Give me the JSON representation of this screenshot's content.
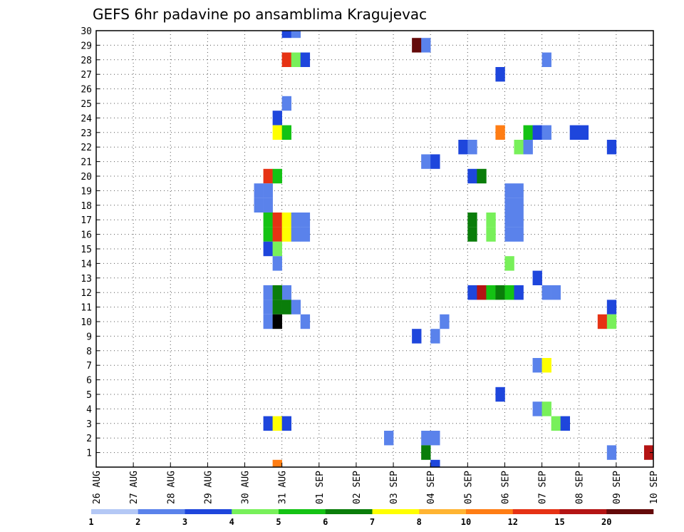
{
  "chart_data": {
    "type": "heatmap",
    "title": "GEFS 6hr padavine po ansamblima Kragujevac",
    "x_start": "2020-08-26T00:00",
    "x_end": "2020-09-10T00:00",
    "x_tick_labels": [
      "26 AUG",
      "27 AUG",
      "28 AUG",
      "29 AUG",
      "30 AUG",
      "31 AUG",
      "01 SEP",
      "02 SEP",
      "03 SEP",
      "04 SEP",
      "05 SEP",
      "06 SEP",
      "07 SEP",
      "08 SEP",
      "09 SEP",
      "10 SEP"
    ],
    "y_ticks": [
      1,
      2,
      3,
      4,
      5,
      6,
      7,
      8,
      9,
      10,
      11,
      12,
      13,
      14,
      15,
      16,
      17,
      18,
      19,
      20,
      21,
      22,
      23,
      24,
      25,
      26,
      27,
      28,
      29,
      30
    ],
    "ylim": [
      0,
      30
    ],
    "grid": true,
    "colorbar": {
      "levels": [
        1,
        2,
        3,
        4,
        5,
        6,
        7,
        8,
        10,
        12,
        15,
        20
      ],
      "labels": [
        "1",
        "2",
        "3",
        "4",
        "5",
        "6",
        "7",
        "8",
        "10",
        "12",
        "15",
        "20"
      ],
      "colors": [
        "#b4c8f5",
        "#5a82eb",
        "#1e46dc",
        "#78f05a",
        "#14c314",
        "#0a7d0a",
        "#ffff00",
        "#ffb432",
        "#ff7d14",
        "#e63214",
        "#b41414",
        "#640a0a"
      ]
    },
    "cells": [
      [
        "2020-08-31T00:00",
        30,
        2
      ],
      [
        "2020-08-31T06:00",
        30,
        1
      ],
      [
        "2020-09-03T12:00",
        29,
        11
      ],
      [
        "2020-09-03T18:00",
        29,
        1
      ],
      [
        "2020-08-31T00:00",
        28,
        9
      ],
      [
        "2020-08-31T06:00",
        28,
        3
      ],
      [
        "2020-08-31T12:00",
        28,
        2
      ],
      [
        "2020-09-07T00:00",
        28,
        1
      ],
      [
        "2020-09-05T18:00",
        27,
        2
      ],
      [
        "2020-08-31T00:00",
        25,
        1
      ],
      [
        "2020-08-30T18:00",
        24,
        2
      ],
      [
        "2020-08-30T18:00",
        23,
        6
      ],
      [
        "2020-08-31T00:00",
        23,
        4
      ],
      [
        "2020-09-05T18:00",
        23,
        8
      ],
      [
        "2020-09-06T12:00",
        23,
        4
      ],
      [
        "2020-09-06T18:00",
        23,
        2
      ],
      [
        "2020-09-07T00:00",
        23,
        1
      ],
      [
        "2020-09-07T18:00",
        23,
        2
      ],
      [
        "2020-09-08T00:00",
        23,
        2
      ],
      [
        "2020-09-04T18:00",
        22,
        2
      ],
      [
        "2020-09-05T00:00",
        22,
        1
      ],
      [
        "2020-09-06T06:00",
        22,
        3
      ],
      [
        "2020-09-06T12:00",
        22,
        1
      ],
      [
        "2020-09-08T18:00",
        22,
        2
      ],
      [
        "2020-09-03T18:00",
        21,
        1
      ],
      [
        "2020-09-04T00:00",
        21,
        2
      ],
      [
        "2020-08-30T12:00",
        20,
        9
      ],
      [
        "2020-08-30T18:00",
        20,
        4
      ],
      [
        "2020-09-05T00:00",
        20,
        2
      ],
      [
        "2020-09-05T06:00",
        20,
        5
      ],
      [
        "2020-08-30T06:00",
        19,
        1
      ],
      [
        "2020-08-30T12:00",
        19,
        1
      ],
      [
        "2020-09-06T00:00",
        19,
        1
      ],
      [
        "2020-09-06T06:00",
        19,
        1
      ],
      [
        "2020-08-30T06:00",
        18,
        1
      ],
      [
        "2020-08-30T12:00",
        18,
        1
      ],
      [
        "2020-09-06T00:00",
        18,
        1
      ],
      [
        "2020-09-06T06:00",
        18,
        1
      ],
      [
        "2020-08-30T12:00",
        17,
        4
      ],
      [
        "2020-08-30T18:00",
        17,
        9
      ],
      [
        "2020-08-31T00:00",
        17,
        6
      ],
      [
        "2020-08-31T06:00",
        17,
        1
      ],
      [
        "2020-08-31T12:00",
        17,
        1
      ],
      [
        "2020-09-05T00:00",
        17,
        5
      ],
      [
        "2020-09-05T12:00",
        17,
        3
      ],
      [
        "2020-09-06T00:00",
        17,
        1
      ],
      [
        "2020-09-06T06:00",
        17,
        1
      ],
      [
        "2020-08-30T12:00",
        16,
        4
      ],
      [
        "2020-08-30T18:00",
        16,
        9
      ],
      [
        "2020-08-31T00:00",
        16,
        6
      ],
      [
        "2020-08-31T06:00",
        16,
        1
      ],
      [
        "2020-08-31T12:00",
        16,
        1
      ],
      [
        "2020-09-05T00:00",
        16,
        5
      ],
      [
        "2020-09-05T12:00",
        16,
        3
      ],
      [
        "2020-09-06T00:00",
        16,
        1
      ],
      [
        "2020-09-06T06:00",
        16,
        1
      ],
      [
        "2020-08-30T12:00",
        15,
        2
      ],
      [
        "2020-08-30T18:00",
        15,
        3
      ],
      [
        "2020-08-30T18:00",
        14,
        1
      ],
      [
        "2020-09-06T00:00",
        14,
        3
      ],
      [
        "2020-09-06T18:00",
        13,
        2
      ],
      [
        "2020-08-31T00:00",
        12,
        1
      ],
      [
        "2020-08-30T12:00",
        12,
        1
      ],
      [
        "2020-08-30T18:00",
        12,
        5
      ],
      [
        "2020-09-05T00:00",
        12,
        2
      ],
      [
        "2020-09-05T06:00",
        12,
        10
      ],
      [
        "2020-09-05T12:00",
        12,
        4
      ],
      [
        "2020-09-05T18:00",
        12,
        5
      ],
      [
        "2020-09-06T00:00",
        12,
        4
      ],
      [
        "2020-09-06T06:00",
        12,
        2
      ],
      [
        "2020-09-07T00:00",
        12,
        1
      ],
      [
        "2020-09-07T06:00",
        12,
        1
      ],
      [
        "2020-08-30T12:00",
        11,
        1
      ],
      [
        "2020-08-30T18:00",
        11,
        5
      ],
      [
        "2020-08-31T00:00",
        11,
        5
      ],
      [
        "2020-08-31T06:00",
        11,
        1
      ],
      [
        "2020-09-08T18:00",
        11,
        2
      ],
      [
        "2020-08-30T12:00",
        10,
        1
      ],
      [
        "2020-08-30T18:00",
        10,
        12
      ],
      [
        "2020-08-31T12:00",
        10,
        1
      ],
      [
        "2020-09-04T06:00",
        10,
        1
      ],
      [
        "2020-09-08T12:00",
        10,
        9
      ],
      [
        "2020-09-08T18:00",
        10,
        3
      ],
      [
        "2020-09-03T12:00",
        9,
        2
      ],
      [
        "2020-09-04T00:00",
        9,
        1
      ],
      [
        "2020-09-06T18:00",
        7,
        1
      ],
      [
        "2020-09-07T00:00",
        7,
        6
      ],
      [
        "2020-09-05T18:00",
        5,
        2
      ],
      [
        "2020-09-06T18:00",
        4,
        1
      ],
      [
        "2020-09-07T00:00",
        4,
        3
      ],
      [
        "2020-08-30T12:00",
        3,
        2
      ],
      [
        "2020-08-30T18:00",
        3,
        6
      ],
      [
        "2020-08-31T00:00",
        3,
        2
      ],
      [
        "2020-09-07T06:00",
        3,
        3
      ],
      [
        "2020-09-07T12:00",
        3,
        2
      ],
      [
        "2020-09-02T18:00",
        2,
        1
      ],
      [
        "2020-09-03T18:00",
        2,
        1
      ],
      [
        "2020-09-04T00:00",
        2,
        1
      ],
      [
        "2020-09-03T18:00",
        1,
        5
      ],
      [
        "2020-09-08T18:00",
        1,
        1
      ],
      [
        "2020-09-09T18:00",
        1,
        10
      ],
      [
        "2020-08-30T18:00",
        0,
        8
      ],
      [
        "2020-09-04T00:00",
        0,
        2
      ]
    ]
  }
}
